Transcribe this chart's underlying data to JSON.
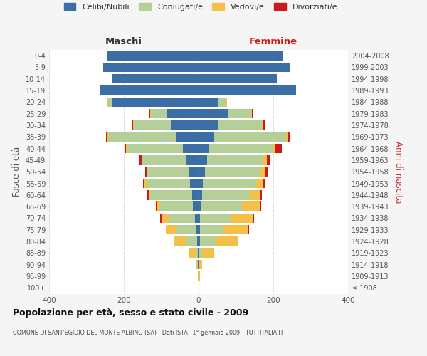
{
  "age_groups": [
    "100+",
    "95-99",
    "90-94",
    "85-89",
    "80-84",
    "75-79",
    "70-74",
    "65-69",
    "60-64",
    "55-59",
    "50-54",
    "45-49",
    "40-44",
    "35-39",
    "30-34",
    "25-29",
    "20-24",
    "15-19",
    "10-14",
    "5-9",
    "0-4"
  ],
  "birth_years": [
    "≤ 1908",
    "1909-1913",
    "1914-1918",
    "1919-1923",
    "1924-1928",
    "1929-1933",
    "1934-1938",
    "1939-1943",
    "1944-1948",
    "1949-1953",
    "1954-1958",
    "1959-1963",
    "1964-1968",
    "1969-1973",
    "1974-1978",
    "1979-1983",
    "1984-1988",
    "1989-1993",
    "1994-1998",
    "1999-2003",
    "2004-2008"
  ],
  "colors": {
    "celibi": "#3a6ea5",
    "coniugati": "#b5cf98",
    "vedovi": "#f5c04a",
    "divorziati": "#cc1a1a"
  },
  "maschi": {
    "celibi": [
      0,
      0,
      1,
      2,
      4,
      7,
      10,
      15,
      18,
      22,
      25,
      32,
      42,
      60,
      75,
      85,
      230,
      265,
      230,
      255,
      245
    ],
    "coniugati": [
      0,
      0,
      2,
      6,
      28,
      52,
      68,
      88,
      112,
      118,
      112,
      118,
      150,
      182,
      98,
      42,
      12,
      0,
      0,
      0,
      0
    ],
    "vedovi": [
      0,
      1,
      4,
      18,
      32,
      28,
      22,
      8,
      4,
      4,
      2,
      2,
      2,
      2,
      2,
      2,
      2,
      0,
      0,
      0,
      0
    ],
    "divorziati": [
      0,
      0,
      0,
      0,
      0,
      0,
      2,
      4,
      6,
      4,
      4,
      6,
      4,
      4,
      4,
      2,
      0,
      0,
      0,
      0,
      0
    ]
  },
  "femmine": {
    "celibi": [
      0,
      0,
      0,
      1,
      4,
      4,
      4,
      8,
      10,
      12,
      18,
      22,
      28,
      42,
      52,
      78,
      52,
      260,
      210,
      245,
      225
    ],
    "coniugati": [
      0,
      1,
      2,
      8,
      42,
      62,
      82,
      108,
      128,
      142,
      148,
      152,
      172,
      192,
      118,
      62,
      22,
      0,
      0,
      0,
      0
    ],
    "vedovi": [
      1,
      2,
      8,
      32,
      58,
      68,
      58,
      48,
      28,
      18,
      12,
      8,
      4,
      4,
      4,
      2,
      2,
      0,
      0,
      0,
      0
    ],
    "divorziati": [
      0,
      0,
      0,
      0,
      2,
      2,
      4,
      4,
      4,
      6,
      6,
      8,
      18,
      8,
      6,
      4,
      0,
      0,
      0,
      0,
      0
    ]
  },
  "title": "Popolazione per età, sesso e stato civile - 2009",
  "subtitle": "COMUNE DI SANT'EGIDIO DEL MONTE ALBINO (SA) - Dati ISTAT 1° gennaio 2009 - TUTTITALIA.IT",
  "xlabel_left": "Maschi",
  "xlabel_right": "Femmine",
  "ylabel_left": "Fasce di età",
  "ylabel_right": "Anni di nascita",
  "xlim": 400,
  "bg_color": "#f5f5f5",
  "plot_bg_color": "#ffffff",
  "grid_color": "#cccccc"
}
